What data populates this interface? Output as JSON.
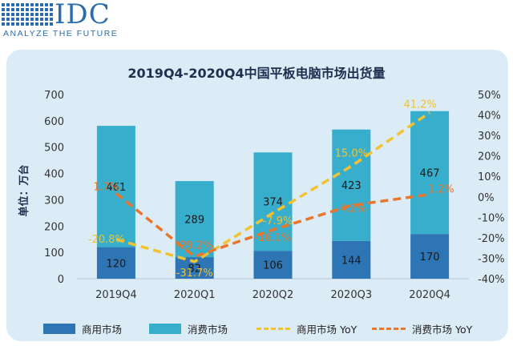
{
  "header": {
    "logo_text": "IDC",
    "tagline": "ANALYZE THE FUTURE"
  },
  "chart_data": {
    "type": "bar",
    "title": "2019Q4-2020Q4中国平板电脑市场出货量",
    "ylabel": "单位：万台",
    "categories": [
      "2019Q4",
      "2020Q1",
      "2020Q2",
      "2020Q3",
      "2020Q4"
    ],
    "ylim": [
      0,
      700
    ],
    "y_ticks": [
      "0",
      "100",
      "200",
      "300",
      "400",
      "500",
      "600",
      "700"
    ],
    "y2lim": [
      -40,
      50
    ],
    "y2_ticks": [
      "-40%",
      "-30%",
      "-20%",
      "-10%",
      "0%",
      "10%",
      "20%",
      "30%",
      "40%",
      "50%"
    ],
    "stacked": true,
    "series": [
      {
        "name": "商用市场",
        "type": "bar",
        "values": [
          120,
          82,
          106,
          144,
          170
        ],
        "labels": [
          "120",
          "82",
          "106",
          "144",
          "170"
        ],
        "color": "#2e75b6"
      },
      {
        "name": "消费市场",
        "type": "bar",
        "values": [
          461,
          289,
          374,
          423,
          467
        ],
        "labels": [
          "461",
          "289",
          "374",
          "423",
          "467"
        ],
        "color": "#37aecb"
      },
      {
        "name": "商用市场 YoY",
        "type": "line",
        "axis": "right",
        "values": [
          -20.8,
          -31.7,
          -7.9,
          15.0,
          41.2
        ],
        "labels": [
          "-20.8%",
          "-31.7%",
          "-7.9%",
          "15.0%",
          "41.2%"
        ],
        "color": "#f2c230",
        "dashed": true
      },
      {
        "name": "消费市场 YoY",
        "type": "line",
        "axis": "right",
        "values": [
          1.7,
          -29.2,
          -16.1,
          -4.2,
          1.2
        ],
        "labels": [
          "1.7%",
          "-29.2%",
          "-16.1%",
          "-4.2%",
          "1.2%"
        ],
        "color": "#e8762d",
        "dashed": true
      }
    ],
    "legend": "bottom",
    "grid": false
  }
}
